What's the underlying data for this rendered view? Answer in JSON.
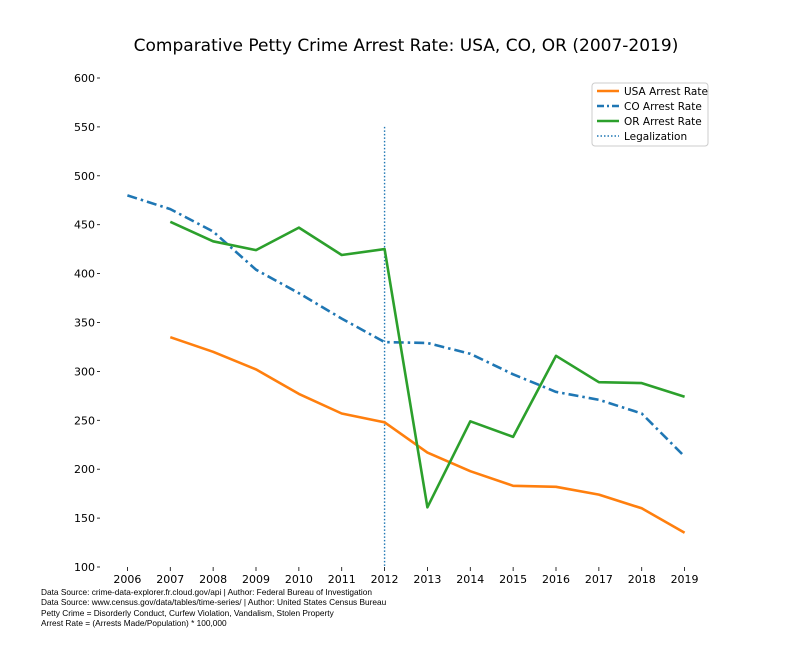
{
  "chart_data": {
    "type": "line",
    "title": "Comparative Petty Crime Arrest Rate: USA, CO, OR (2007-2019)",
    "xlabel": "",
    "ylabel": "",
    "x": [
      2006,
      2007,
      2008,
      2009,
      2010,
      2011,
      2012,
      2013,
      2014,
      2015,
      2016,
      2017,
      2018,
      2019
    ],
    "x_ticks": [
      "2006",
      "2007",
      "2008",
      "2009",
      "2010",
      "2011",
      "2012",
      "2013",
      "2014",
      "2015",
      "2016",
      "2017",
      "2018",
      "2019"
    ],
    "ylim": [
      100,
      600
    ],
    "y_ticks": [
      "100",
      "150",
      "200",
      "250",
      "300",
      "350",
      "400",
      "450",
      "500",
      "550",
      "600"
    ],
    "y_tick_values": [
      100,
      150,
      200,
      250,
      300,
      350,
      400,
      450,
      500,
      550,
      600
    ],
    "grid": false,
    "legend_position": "top-right",
    "series": [
      {
        "name": "USA Arrest Rate",
        "color": "#ff7f0e",
        "style": "solid",
        "points": [
          [
            2007,
            335
          ],
          [
            2008,
            320
          ],
          [
            2009,
            302
          ],
          [
            2010,
            277
          ],
          [
            2011,
            257
          ],
          [
            2012,
            248
          ],
          [
            2013,
            217
          ],
          [
            2014,
            198
          ],
          [
            2015,
            183
          ],
          [
            2016,
            182
          ],
          [
            2017,
            174
          ],
          [
            2018,
            160
          ],
          [
            2019,
            135
          ]
        ]
      },
      {
        "name": "CO Arrest Rate",
        "color": "#1f77b4",
        "style": "dashdot",
        "points": [
          [
            2006,
            480
          ],
          [
            2007,
            466
          ],
          [
            2008,
            443
          ],
          [
            2009,
            404
          ],
          [
            2010,
            380
          ],
          [
            2011,
            354
          ],
          [
            2012,
            330
          ],
          [
            2013,
            329
          ],
          [
            2014,
            318
          ],
          [
            2015,
            297
          ],
          [
            2016,
            279
          ],
          [
            2017,
            271
          ],
          [
            2018,
            257
          ],
          [
            2019,
            213
          ]
        ]
      },
      {
        "name": "OR Arrest Rate",
        "color": "#2ca02c",
        "style": "solid",
        "points": [
          [
            2007,
            453
          ],
          [
            2008,
            433
          ],
          [
            2009,
            424
          ],
          [
            2010,
            447
          ],
          [
            2011,
            419
          ],
          [
            2012,
            425
          ],
          [
            2013,
            161
          ],
          [
            2014,
            249
          ],
          [
            2015,
            233
          ],
          [
            2016,
            316
          ],
          [
            2017,
            289
          ],
          [
            2018,
            288
          ],
          [
            2019,
            274
          ]
        ]
      }
    ],
    "annotations": [
      {
        "name": "Legalization",
        "type": "vline",
        "x": 2012,
        "y_range": [
          100,
          550
        ],
        "color": "#1f77b4",
        "style": "dotted"
      }
    ]
  },
  "footnotes": [
    "Data Source: crime-data-explorer.fr.cloud.gov/api | Author: Federal Bureau of Investigation",
    "Data Source: www.census.gov/data/tables/time-series/ | Author: United States Census Bureau",
    "Petty Crime = Disorderly Conduct, Curfew Violation, Vandalism, Stolen Property",
    "Arrest Rate = (Arrests Made/Population) * 100,000"
  ]
}
